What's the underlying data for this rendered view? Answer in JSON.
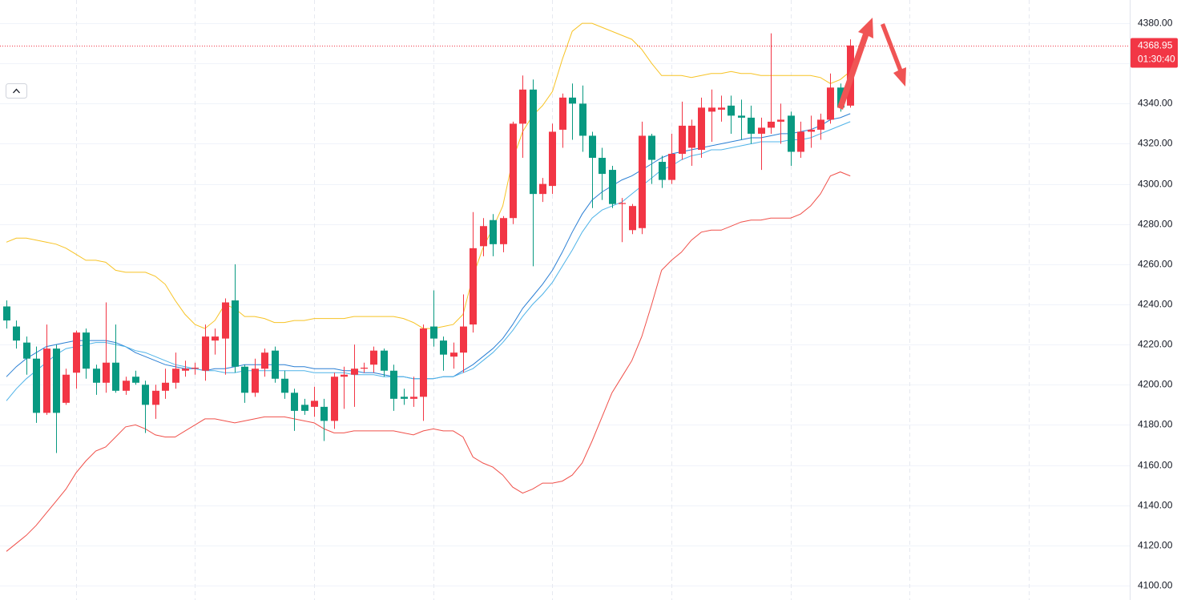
{
  "chart_data": {
    "type": "candlestick",
    "up_color": "#f23645",
    "down_color": "#089981",
    "ylim": [
      4092.8,
      4391.6
    ],
    "yticks": [
      {
        "value": 4100,
        "label": "4100.00"
      },
      {
        "value": 4120,
        "label": "4120.00"
      },
      {
        "value": 4140,
        "label": "4140.00"
      },
      {
        "value": 4160,
        "label": "4160.00"
      },
      {
        "value": 4180,
        "label": "4180.00"
      },
      {
        "value": 4200,
        "label": "4200.00"
      },
      {
        "value": 4220,
        "label": "4220.00"
      },
      {
        "value": 4240,
        "label": "4240.00"
      },
      {
        "value": 4260,
        "label": "4260.00"
      },
      {
        "value": 4280,
        "label": "4280.00"
      },
      {
        "value": 4300,
        "label": "4300.00"
      },
      {
        "value": 4320,
        "label": "4320.00"
      },
      {
        "value": 4340,
        "label": "4340.00"
      },
      {
        "value": 4360,
        "label": "4360.00"
      },
      {
        "value": 4380,
        "label": "4380.00"
      }
    ],
    "grid": true,
    "countdown": "01:30:40",
    "candles": {
      "open": [
        4239,
        4229,
        4221,
        4213,
        4186,
        4218,
        4191,
        4206,
        4226,
        4208,
        4201,
        4211,
        4197,
        4204,
        4200,
        4190,
        4197,
        4201,
        4207,
        4208,
        4207,
        4222,
        4223,
        4242,
        4209,
        4196,
        4208,
        4217,
        4203,
        4196,
        4190,
        4189,
        4189,
        4182,
        4204,
        4205,
        4208,
        4210,
        4217,
        4207,
        4194,
        4193,
        4194,
        4229,
        4222,
        4214,
        4216,
        4230,
        4269,
        4282,
        4270,
        4283,
        4330,
        4347,
        4295,
        4299,
        4327,
        4343,
        4340,
        4324,
        4313,
        4307,
        4290,
        4277,
        4278,
        4324,
        4311,
        4302,
        4315,
        4318,
        4317,
        4336,
        4337,
        4339,
        4334,
        4333,
        4325,
        4328,
        4331,
        4334,
        4316,
        4326,
        4327,
        4332,
        4348,
        4339
      ],
      "high": [
        4242,
        4232,
        4224,
        4219,
        4230,
        4220,
        4208,
        4227,
        4228,
        4210,
        4241,
        4230,
        4204,
        4207,
        4202,
        4200,
        4208,
        4216,
        4212,
        4211,
        4230,
        4228,
        4243,
        4260,
        4210,
        4213,
        4218,
        4219,
        4207,
        4198,
        4193,
        4199,
        4193,
        4206,
        4209,
        4220,
        4211,
        4219,
        4218,
        4210,
        4198,
        4204,
        4230,
        4247,
        4224,
        4221,
        4245,
        4286,
        4283,
        4285,
        4284,
        4331,
        4354,
        4352,
        4303,
        4330,
        4345,
        4350,
        4349,
        4326,
        4318,
        4309,
        4293,
        4290,
        4331,
        4325,
        4314,
        4325,
        4341,
        4332,
        4343,
        4347,
        4344,
        4344,
        4342,
        4339,
        4333,
        4375,
        4340,
        4336,
        4331,
        4334,
        4335,
        4355,
        4350,
        4372
      ],
      "low": [
        4228,
        4218,
        4205,
        4181,
        4185,
        4166,
        4190,
        4198,
        4203,
        4195,
        4196,
        4196,
        4195,
        4200,
        4176,
        4183,
        4193,
        4198,
        4204,
        4205,
        4202,
        4215,
        4205,
        4206,
        4191,
        4194,
        4204,
        4201,
        4193,
        4177,
        4185,
        4184,
        4172,
        4178,
        4188,
        4189,
        4206,
        4206,
        4204,
        4187,
        4190,
        4189,
        4182,
        4219,
        4207,
        4208,
        4206,
        4226,
        4264,
        4264,
        4266,
        4280,
        4313,
        4259,
        4291,
        4295,
        4318,
        4322,
        4316,
        4288,
        4292,
        4288,
        4271,
        4275,
        4275,
        4300,
        4298,
        4300,
        4312,
        4309,
        4313,
        4321,
        4331,
        4325,
        4322,
        4320,
        4307,
        4325,
        4320,
        4309,
        4313,
        4318,
        4322,
        4330,
        4336,
        4338
      ],
      "close": [
        4232,
        4222,
        4213,
        4186,
        4218,
        4186,
        4205,
        4226,
        4208,
        4201,
        4211,
        4197,
        4202,
        4201,
        4190,
        4197,
        4201,
        4208,
        4208,
        4208.5,
        4224,
        4224,
        4241,
        4209,
        4196,
        4208,
        4216,
        4203,
        4196,
        4187,
        4187,
        4192,
        4182,
        4204,
        4205,
        4208,
        4208.5,
        4217,
        4207,
        4193,
        4193,
        4194,
        4228,
        4223,
        4215,
        4216,
        4229,
        4268,
        4279,
        4270,
        4283,
        4330,
        4347,
        4295,
        4300,
        4326,
        4343,
        4340,
        4324,
        4313,
        4305,
        4290,
        4290.5,
        4289,
        4324,
        4312,
        4302,
        4315,
        4329,
        4329,
        4338,
        4338,
        4338,
        4334,
        4333,
        4325,
        4328,
        4331,
        4332,
        4316,
        4326,
        4327,
        4332,
        4348,
        4338,
        4368.95
      ]
    },
    "series": [
      {
        "color": "#f7c325",
        "values": [
          4271,
          4273,
          4273,
          4272,
          4271,
          4270,
          4268,
          4265,
          4262,
          4262,
          4261,
          4257,
          4256,
          4256,
          4256,
          4254,
          4250,
          4242,
          4235,
          4230,
          4228,
          4232,
          4240,
          4238,
          4234,
          4234,
          4233,
          4231,
          4231,
          4232,
          4232,
          4233,
          4233,
          4233,
          4233,
          4234,
          4234,
          4234,
          4234,
          4234,
          4233,
          4231,
          4228,
          4228,
          4229,
          4230,
          4235,
          4254,
          4268,
          4278,
          4289,
          4312,
          4326,
          4334,
          4339,
          4346,
          4362,
          4376,
          4380,
          4380,
          4378,
          4376,
          4374,
          4372,
          4367,
          4360,
          4354,
          4354,
          4354,
          4353,
          4354,
          4355,
          4355,
          4356,
          4355,
          4355,
          4354,
          4354,
          4354,
          4354,
          4354,
          4354,
          4353,
          4350,
          4352,
          4356
        ]
      },
      {
        "color": "#f0504a",
        "values": [
          4117,
          4121,
          4125,
          4130,
          4136,
          4142,
          4148,
          4156,
          4162,
          4167,
          4169,
          4174,
          4179,
          4180,
          4178,
          4175,
          4174,
          4174,
          4177,
          4180,
          4183,
          4183,
          4182,
          4181,
          4182,
          4183,
          4184,
          4184,
          4184,
          4183,
          4182,
          4181,
          4178,
          4176,
          4176,
          4177,
          4177,
          4177,
          4177,
          4177,
          4176,
          4175,
          4177,
          4178,
          4177,
          4177,
          4174,
          4164,
          4161,
          4159,
          4155,
          4149,
          4146,
          4148,
          4151,
          4151,
          4152,
          4155,
          4161,
          4172,
          4184,
          4196,
          4204,
          4212,
          4224,
          4240,
          4257,
          4262,
          4266,
          4272,
          4276,
          4277,
          4277,
          4279,
          4281,
          4282,
          4282,
          4283,
          4283,
          4283,
          4285,
          4289,
          4295,
          4304,
          4306,
          4304
        ]
      },
      {
        "color": "#2a7fd4",
        "values": [
          4204,
          4209,
          4213,
          4216,
          4219,
          4220,
          4221,
          4222,
          4222,
          4222,
          4222,
          4221,
          4219,
          4216,
          4214,
          4212,
          4210,
          4209,
          4208,
          4208,
          4207,
          4208,
          4208,
          4209,
          4210,
          4210,
          4210,
          4210,
          4210,
          4209,
          4209,
          4208,
          4208,
          4208,
          4207,
          4207,
          4206,
          4206,
          4205,
          4204,
          4204,
          4203,
          4203,
          4203,
          4204,
          4204,
          4207,
          4210,
          4214,
          4218,
          4223,
          4230,
          4238,
          4244,
          4250,
          4257,
          4266,
          4276,
          4285,
          4292,
          4296,
          4299,
          4302,
          4304,
          4307,
          4310,
          4313,
          4315,
          4316,
          4317,
          4318,
          4319,
          4320,
          4321,
          4322,
          4323,
          4323,
          4324,
          4325,
          4325,
          4326,
          4327,
          4329,
          4332,
          4333,
          4335
        ]
      },
      {
        "color": "#4fb3e8",
        "values": [
          4192,
          4198,
          4203,
          4207,
          4211,
          4215,
          4218,
          4219,
          4220,
          4221,
          4221,
          4220,
          4219,
          4217,
          4216,
          4214,
          4212,
          4210,
          4209,
          4208,
          4207,
          4207,
          4206,
          4206,
          4207,
          4207,
          4207,
          4207,
          4207,
          4207,
          4207,
          4206,
          4206,
          4206,
          4206,
          4205,
          4205,
          4205,
          4204,
          4204,
          4204,
          4203,
          4203,
          4203,
          4204,
          4204,
          4206,
          4208,
          4212,
          4216,
          4221,
          4227,
          4234,
          4240,
          4245,
          4251,
          4259,
          4267,
          4276,
          4283,
          4287,
          4289,
          4291,
          4295,
          4299,
          4303,
          4307,
          4309,
          4312,
          4314,
          4315,
          4317,
          4317,
          4318,
          4319,
          4320,
          4321,
          4321,
          4321,
          4322,
          4322,
          4323,
          4325,
          4327,
          4329,
          4331
        ]
      }
    ]
  }
}
